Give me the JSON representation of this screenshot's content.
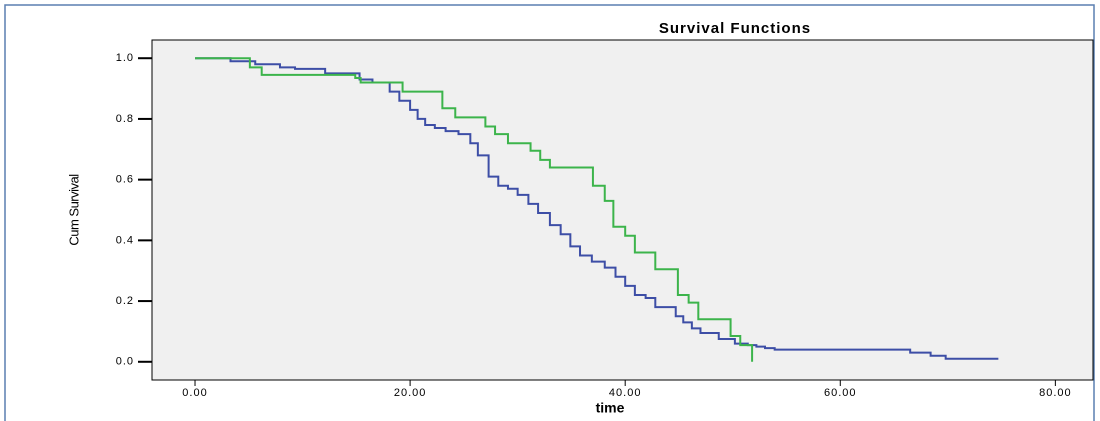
{
  "chart_data": {
    "type": "step",
    "title": "Survival Functions",
    "x_label": "time",
    "y_label": "Cum Survival",
    "xlim": [
      -4,
      83.5
    ],
    "ylim": [
      -0.06,
      1.06
    ],
    "xticks": [
      {
        "value": 0,
        "label": "0.00"
      },
      {
        "value": 20,
        "label": "20.00"
      },
      {
        "value": 40,
        "label": "40.00"
      },
      {
        "value": 60,
        "label": "60.00"
      },
      {
        "value": 80,
        "label": "80.00"
      }
    ],
    "yticks": [
      {
        "value": 0,
        "label": "0.0"
      },
      0.2,
      0.4,
      0.6,
      0.8,
      {
        "value": 1,
        "label": "1.0"
      }
    ],
    "series": [
      {
        "color": "#3d4ea6",
        "x": [
          0,
          3.3,
          5.6,
          7.9,
          9.3,
          12.1,
          15.3,
          16.5,
          18.1,
          19,
          20,
          20.7,
          21.4,
          22.3,
          23.3,
          24.5,
          25.6,
          26.3,
          27.3,
          28.2,
          29.1,
          30,
          31,
          31.9,
          33,
          34,
          34.9,
          35.8,
          36.9,
          38.1,
          39.1,
          40,
          40.9,
          41.9,
          42.8,
          44.7,
          45.4,
          46.2,
          47,
          48.7,
          50.2,
          51.4,
          52.2,
          53,
          53.9,
          66.5,
          68.4,
          69.8,
          74.7
        ],
        "values": [
          1.0,
          0.99,
          0.98,
          0.97,
          0.965,
          0.95,
          0.93,
          0.92,
          0.89,
          0.86,
          0.83,
          0.8,
          0.78,
          0.77,
          0.76,
          0.75,
          0.72,
          0.68,
          0.61,
          0.58,
          0.57,
          0.55,
          0.52,
          0.49,
          0.45,
          0.42,
          0.38,
          0.35,
          0.33,
          0.31,
          0.28,
          0.25,
          0.22,
          0.21,
          0.18,
          0.15,
          0.13,
          0.11,
          0.095,
          0.075,
          0.06,
          0.055,
          0.05,
          0.045,
          0.04,
          0.03,
          0.02,
          0.01,
          0.01
        ]
      },
      {
        "color": "#3cb44b",
        "x": [
          0,
          5.1,
          6.2,
          14.9,
          15.4,
          19.3,
          23,
          24.2,
          27,
          27.9,
          29.1,
          31.2,
          32.1,
          33,
          37,
          38.1,
          38.9,
          40,
          40.9,
          42.8,
          44.9,
          45.9,
          46.8,
          49.8,
          50.7,
          51.8
        ],
        "values": [
          1.0,
          0.97,
          0.945,
          0.935,
          0.92,
          0.89,
          0.835,
          0.805,
          0.775,
          0.75,
          0.72,
          0.695,
          0.665,
          0.64,
          0.58,
          0.53,
          0.445,
          0.415,
          0.36,
          0.305,
          0.22,
          0.195,
          0.14,
          0.085,
          0.055,
          0.0
        ]
      }
    ]
  }
}
